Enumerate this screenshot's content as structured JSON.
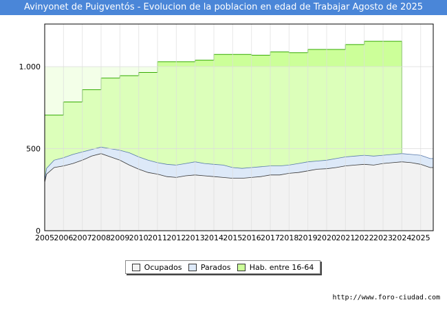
{
  "title": "Avinyonet de Puigventós - Evolucion de la poblacion en edad de Trabajar Agosto de 2025",
  "source": "http://www.foro-ciudad.com",
  "watermark": "FORO-CIUDAD.COM",
  "colors": {
    "title_bar": "#4a86d8",
    "hab_fill": "#ccff99",
    "hab_line": "#33aa00",
    "parados_fill": "#dde9f8",
    "parados_line": "#5577aa",
    "ocupados_fill": "#f2f2f2",
    "ocupados_line": "#333333"
  },
  "chart_data": {
    "type": "area",
    "title": "Avinyonet de Puigventós - Evolucion de la poblacion en edad de Trabajar Agosto de 2025",
    "xlabel": "",
    "ylabel": "",
    "x_ticks": [
      "2005",
      "2006",
      "2007",
      "2008",
      "2009",
      "2010",
      "2011",
      "2012",
      "2013",
      "2014",
      "2015",
      "2016",
      "2017",
      "2018",
      "2019",
      "2020",
      "2021",
      "2022",
      "2023",
      "2024",
      "2025"
    ],
    "y_ticks": [
      0,
      500,
      1000
    ],
    "y_tick_labels": [
      "0",
      "500",
      "1.000"
    ],
    "xlim": [
      2005,
      2025.67
    ],
    "ylim": [
      0,
      1260
    ],
    "grid": true,
    "legend_position": "bottom-center",
    "series": [
      {
        "name": "Hab. entre 16-64",
        "type": "step",
        "x": [
          2005,
          2006,
          2007,
          2008,
          2009,
          2010,
          2011,
          2012,
          2013,
          2014,
          2015,
          2016,
          2017,
          2018,
          2019,
          2020,
          2021,
          2022,
          2023,
          2024
        ],
        "values": [
          705,
          785,
          860,
          930,
          945,
          965,
          1030,
          1030,
          1040,
          1075,
          1075,
          1070,
          1090,
          1085,
          1105,
          1105,
          1135,
          1155,
          1155,
          1155
        ]
      },
      {
        "name": "Parados",
        "x": [
          2005,
          2005.1,
          2005.5,
          2006,
          2006.5,
          2007,
          2007.5,
          2008,
          2008.5,
          2009,
          2009.5,
          2010,
          2010.5,
          2011,
          2011.5,
          2012,
          2012.5,
          2013,
          2013.5,
          2014,
          2014.5,
          2015,
          2015.5,
          2016,
          2016.5,
          2017,
          2017.5,
          2018,
          2018.5,
          2019,
          2019.5,
          2020,
          2020.5,
          2021,
          2021.5,
          2022,
          2022.5,
          2023,
          2023.5,
          2024,
          2024.5,
          2025,
          2025.5
        ],
        "values": [
          305,
          380,
          430,
          445,
          465,
          480,
          495,
          510,
          500,
          490,
          475,
          450,
          430,
          415,
          405,
          400,
          410,
          420,
          410,
          405,
          400,
          385,
          380,
          385,
          390,
          395,
          395,
          400,
          410,
          420,
          425,
          430,
          440,
          450,
          455,
          460,
          455,
          460,
          465,
          470,
          465,
          460,
          440
        ]
      },
      {
        "name": "Ocupados",
        "x": [
          2005,
          2005.1,
          2005.5,
          2006,
          2006.5,
          2007,
          2007.5,
          2008,
          2008.5,
          2009,
          2009.5,
          2010,
          2010.5,
          2011,
          2011.5,
          2012,
          2012.5,
          2013,
          2013.5,
          2014,
          2014.5,
          2015,
          2015.5,
          2016,
          2016.5,
          2017,
          2017.5,
          2018,
          2018.5,
          2019,
          2019.5,
          2020,
          2020.5,
          2021,
          2021.5,
          2022,
          2022.5,
          2023,
          2023.5,
          2024,
          2024.5,
          2025,
          2025.5
        ],
        "values": [
          295,
          345,
          385,
          395,
          410,
          430,
          455,
          470,
          450,
          430,
          400,
          375,
          355,
          345,
          330,
          325,
          335,
          340,
          335,
          330,
          325,
          320,
          320,
          325,
          330,
          340,
          340,
          350,
          355,
          365,
          375,
          378,
          385,
          395,
          400,
          405,
          400,
          410,
          415,
          420,
          415,
          405,
          385
        ]
      }
    ]
  },
  "legend": {
    "ocupados": "Ocupados",
    "parados": "Parados",
    "hab": "Hab. entre 16-64"
  }
}
